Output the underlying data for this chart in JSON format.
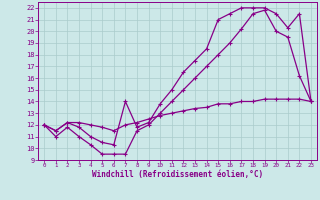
{
  "background_color": "#cce8e8",
  "grid_color": "#aacccc",
  "line_color": "#880088",
  "xlabel": "Windchill (Refroidissement éolien,°C)",
  "xlim": [
    -0.5,
    23.5
  ],
  "ylim": [
    9,
    22.5
  ],
  "xticks": [
    0,
    1,
    2,
    3,
    4,
    5,
    6,
    7,
    8,
    9,
    10,
    11,
    12,
    13,
    14,
    15,
    16,
    17,
    18,
    19,
    20,
    21,
    22,
    23
  ],
  "yticks": [
    9,
    10,
    11,
    12,
    13,
    14,
    15,
    16,
    17,
    18,
    19,
    20,
    21,
    22
  ],
  "line1_x": [
    0,
    1,
    2,
    3,
    4,
    5,
    6,
    7,
    8,
    9,
    10,
    11,
    12,
    13,
    14,
    15,
    16,
    17,
    18,
    19,
    20,
    21,
    22,
    23
  ],
  "line1_y": [
    12,
    11,
    11.8,
    11,
    10.3,
    9.5,
    9.5,
    9.5,
    11.5,
    12,
    13,
    14,
    15,
    16,
    17,
    18,
    19,
    20.2,
    21.5,
    21.8,
    20,
    19.5,
    16.2,
    14
  ],
  "line2_x": [
    0,
    1,
    2,
    3,
    4,
    5,
    6,
    7,
    8,
    9,
    10,
    11,
    12,
    13,
    14,
    15,
    16,
    17,
    18,
    19,
    20,
    21,
    22,
    23
  ],
  "line2_y": [
    12,
    11.5,
    12.2,
    11.8,
    11,
    10.5,
    10.3,
    14,
    11.8,
    12.2,
    13.8,
    15,
    16.5,
    17.5,
    18.5,
    21,
    21.5,
    22,
    22,
    22,
    21.5,
    20.3,
    21.5,
    14
  ],
  "line3_x": [
    0,
    1,
    2,
    3,
    4,
    5,
    6,
    7,
    8,
    9,
    10,
    11,
    12,
    13,
    14,
    15,
    16,
    17,
    18,
    19,
    20,
    21,
    22,
    23
  ],
  "line3_y": [
    12,
    11.5,
    12.2,
    12.2,
    12,
    11.8,
    11.5,
    12,
    12.2,
    12.5,
    12.8,
    13.0,
    13.2,
    13.4,
    13.5,
    13.8,
    13.8,
    14.0,
    14.0,
    14.2,
    14.2,
    14.2,
    14.2,
    14.0
  ],
  "marker": "+",
  "markersize": 3,
  "linewidth": 0.9
}
